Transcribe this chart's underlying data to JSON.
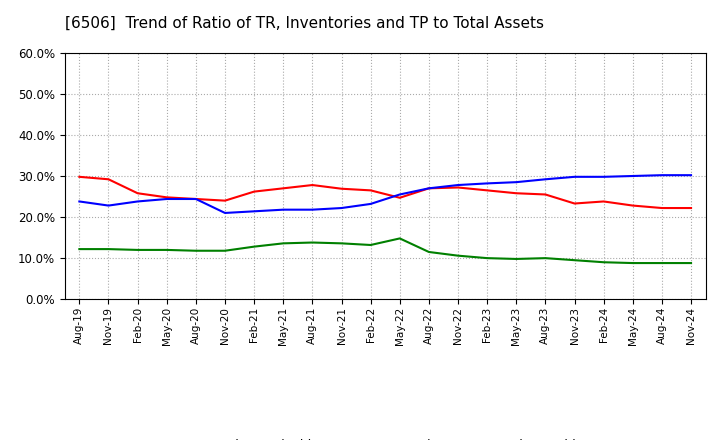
{
  "title": "[6506]  Trend of Ratio of TR, Inventories and TP to Total Assets",
  "x_labels": [
    "Aug-19",
    "Nov-19",
    "Feb-20",
    "May-20",
    "Aug-20",
    "Nov-20",
    "Feb-21",
    "May-21",
    "Aug-21",
    "Nov-21",
    "Feb-22",
    "May-22",
    "Aug-22",
    "Nov-22",
    "Feb-23",
    "May-23",
    "Aug-23",
    "Nov-23",
    "Feb-24",
    "May-24",
    "Aug-24",
    "Nov-24"
  ],
  "trade_receivables": [
    0.298,
    0.292,
    0.258,
    0.248,
    0.244,
    0.24,
    0.262,
    0.27,
    0.278,
    0.269,
    0.265,
    0.247,
    0.27,
    0.272,
    0.265,
    0.258,
    0.255,
    0.233,
    0.238,
    0.228,
    0.222,
    0.222
  ],
  "inventories": [
    0.238,
    0.228,
    0.238,
    0.244,
    0.244,
    0.21,
    0.214,
    0.218,
    0.218,
    0.222,
    0.232,
    0.255,
    0.27,
    0.278,
    0.282,
    0.285,
    0.292,
    0.298,
    0.298,
    0.3,
    0.302,
    0.302
  ],
  "trade_payables": [
    0.122,
    0.122,
    0.12,
    0.12,
    0.118,
    0.118,
    0.128,
    0.136,
    0.138,
    0.136,
    0.132,
    0.148,
    0.115,
    0.106,
    0.1,
    0.098,
    0.1,
    0.095,
    0.09,
    0.088,
    0.088,
    0.088
  ],
  "tr_color": "#ff0000",
  "inv_color": "#0000ff",
  "tp_color": "#008000",
  "ylim": [
    0.0,
    0.6
  ],
  "yticks": [
    0.0,
    0.1,
    0.2,
    0.3,
    0.4,
    0.5,
    0.6
  ],
  "background_color": "#ffffff",
  "plot_bg_color": "#ffffff",
  "grid_color": "#aaaaaa",
  "title_fontsize": 11,
  "line_width": 1.5
}
